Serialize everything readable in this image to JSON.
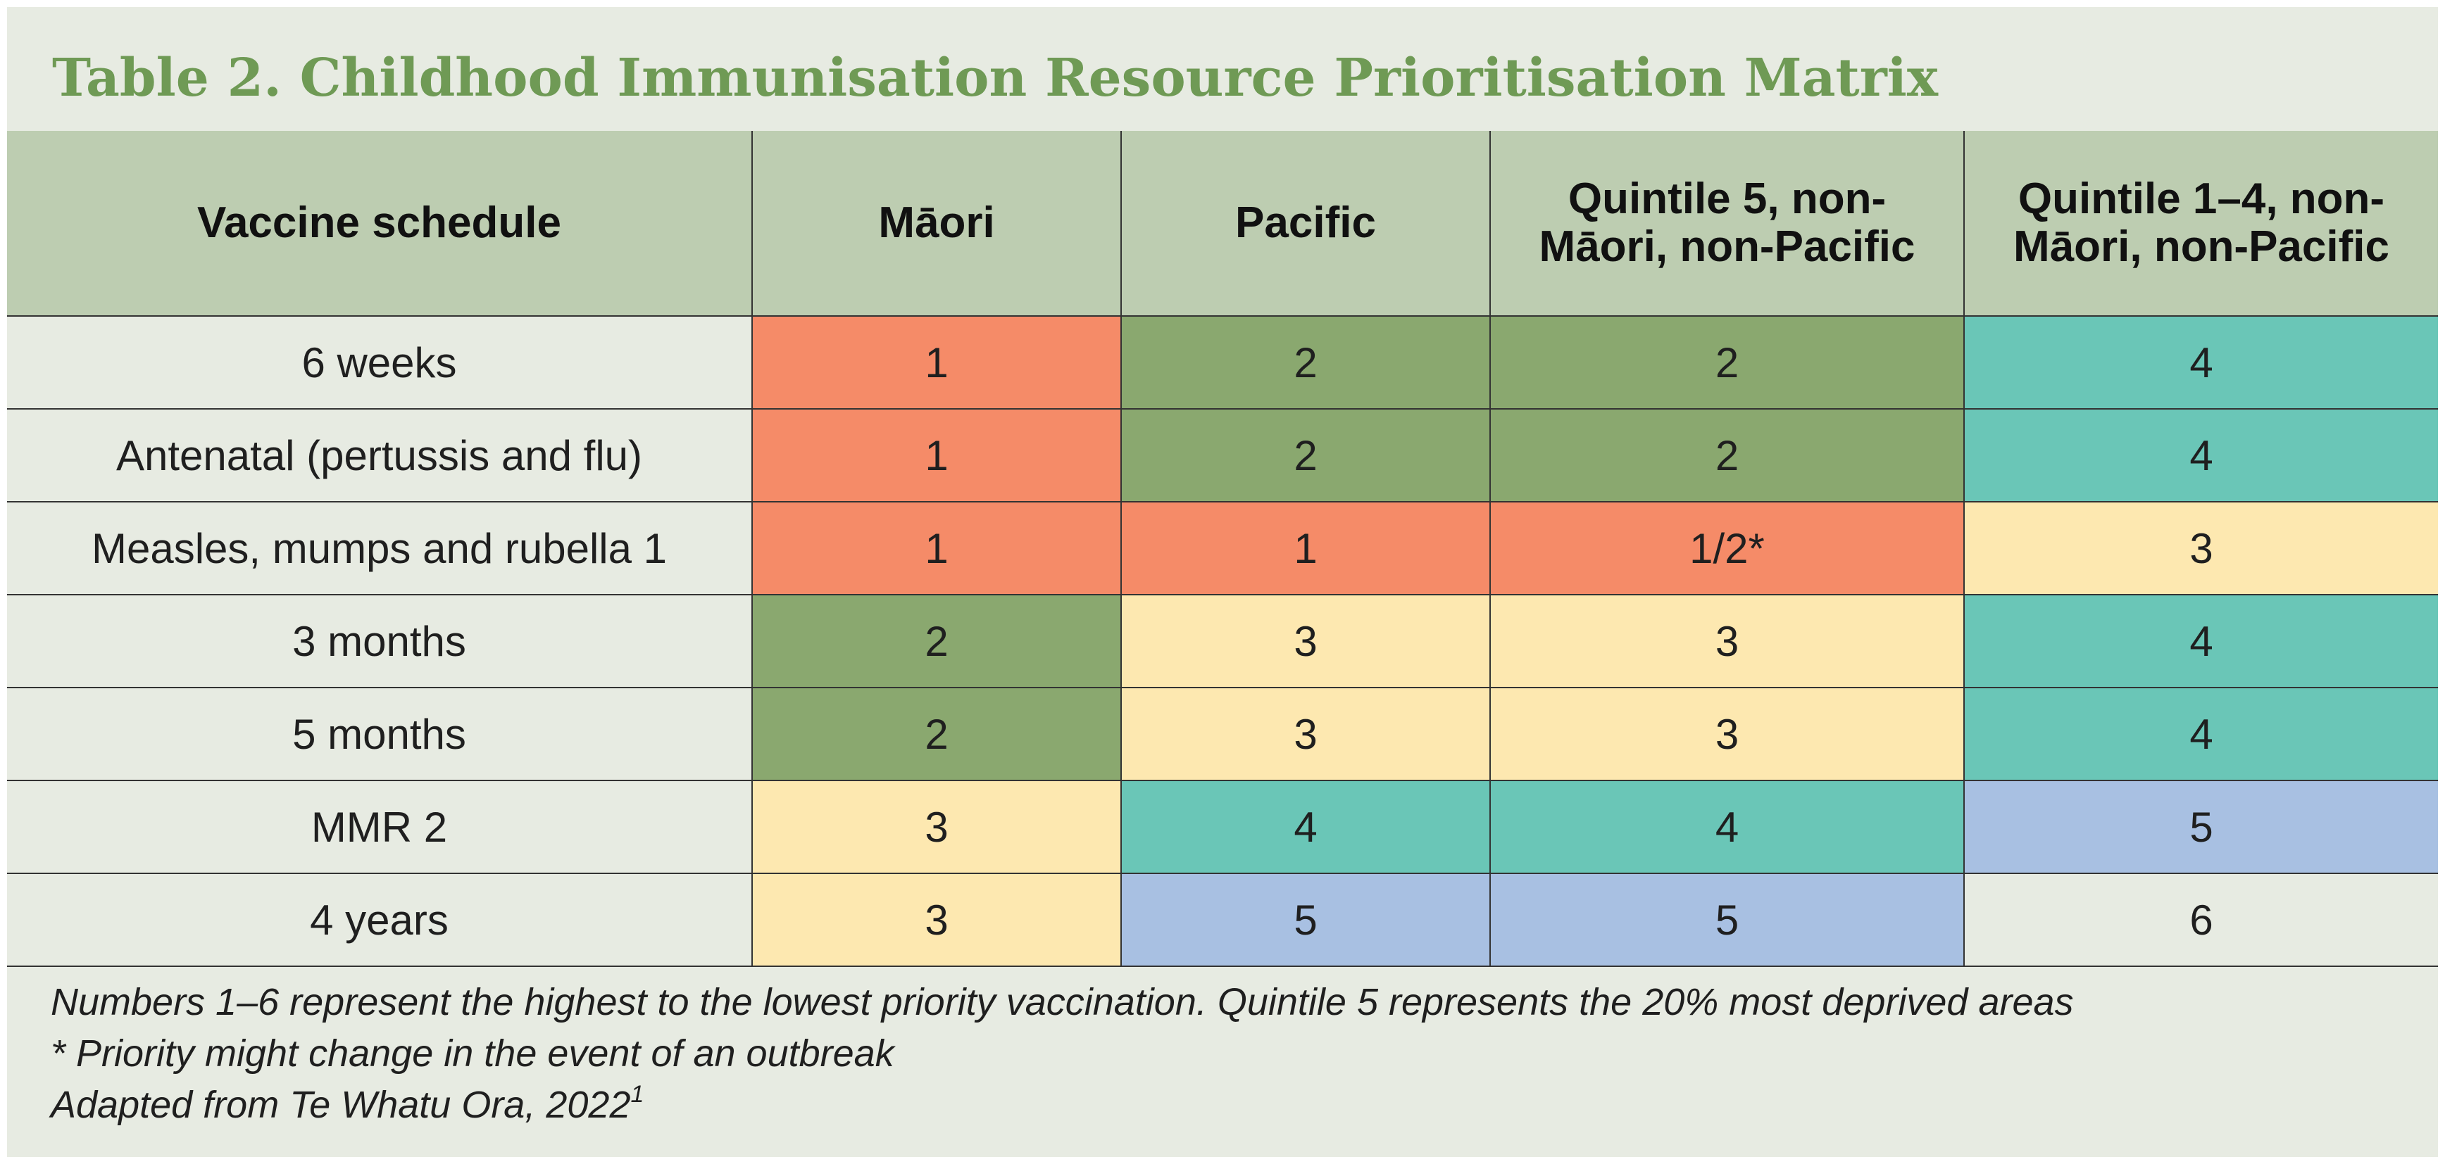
{
  "title": "Table 2. Childhood Immunisation Resource Prioritisation Matrix",
  "colors": {
    "priority_1": "#f58b68",
    "priority_2": "#8aa86f",
    "priority_3": "#fde8b0",
    "priority_4": "#6ac6b7",
    "priority_5": "#a8c0e2",
    "priority_6": "#e7ebe2",
    "header_bg": "#bdcdb1",
    "title_color": "#6f9a55"
  },
  "table": {
    "headers": [
      "Vaccine schedule",
      "Māori",
      "Pacific",
      "Quintile 5, non-Māori, non-Pacific",
      "Quintile 1–4, non-Māori, non-Pacific"
    ],
    "rows": [
      {
        "label": "6 weeks",
        "values": [
          "1",
          "2",
          "2",
          "4"
        ]
      },
      {
        "label": "Antenatal (pertussis and flu)",
        "values": [
          "1",
          "2",
          "2",
          "4"
        ]
      },
      {
        "label": "Measles, mumps and rubella 1",
        "values": [
          "1",
          "1",
          "1/2*",
          "3"
        ]
      },
      {
        "label": "3 months",
        "values": [
          "2",
          "3",
          "3",
          "4"
        ]
      },
      {
        "label": "5 months",
        "values": [
          "2",
          "3",
          "3",
          "4"
        ]
      },
      {
        "label": "MMR 2",
        "values": [
          "3",
          "4",
          "4",
          "5"
        ]
      },
      {
        "label": "4 years",
        "values": [
          "3",
          "5",
          "5",
          "6"
        ]
      }
    ]
  },
  "notes": {
    "line1": "Numbers 1–6 represent the highest to the lowest priority vaccination. Quintile 5 represents the 20% most deprived areas",
    "line2": "* Priority might change in the event of an outbreak",
    "line3": "Adapted from Te Whatu Ora, 2022",
    "line3_sup": "1"
  }
}
